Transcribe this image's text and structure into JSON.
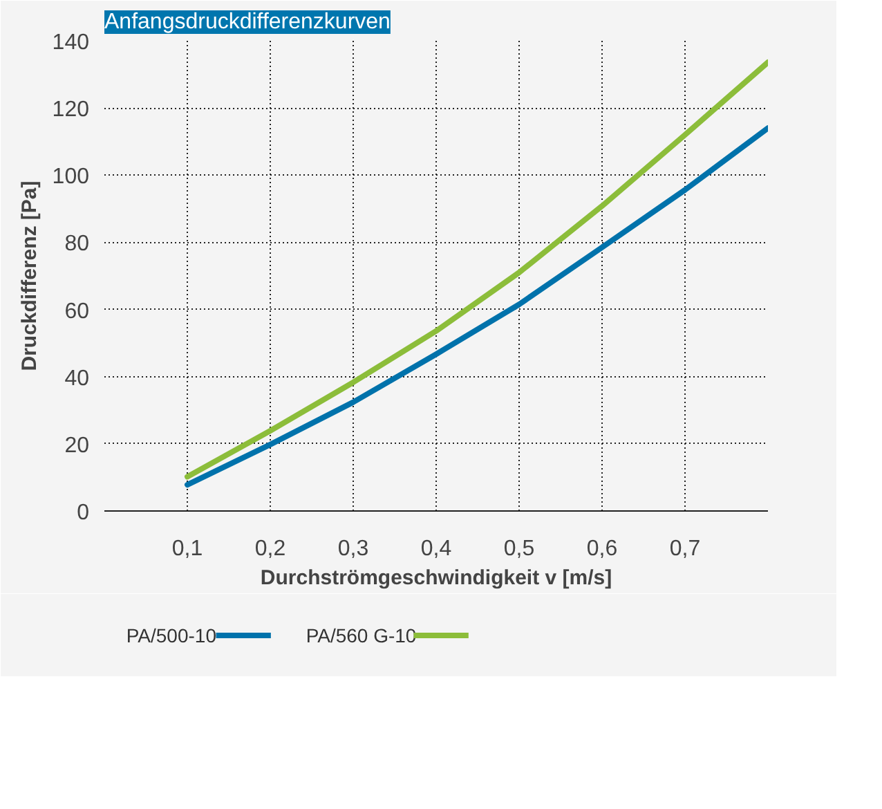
{
  "chart_data": {
    "type": "line",
    "title": "Anfangsdruckdifferenzkurven",
    "xlabel": "Durchströmgeschwindigkeit v [m/s]",
    "ylabel": "Druckdifferenz [Pa]",
    "x": [
      0.1,
      0.2,
      0.3,
      0.4,
      0.5,
      0.6,
      0.7,
      0.8
    ],
    "series": [
      {
        "name": "PA/500-10",
        "color": "#0072ab",
        "values": [
          7.8,
          19.8,
          32.4,
          46.7,
          61.5,
          78.5,
          95.6,
          114
        ]
      },
      {
        "name": "PA/560 G-10",
        "color": "#8cbd3a",
        "values": [
          10.2,
          23.9,
          38.3,
          53.6,
          71,
          90.8,
          112,
          133.6
        ]
      }
    ],
    "xlim": [
      0,
      0.8
    ],
    "ylim": [
      0,
      140
    ],
    "xticks": [
      {
        "value": 0.1,
        "label": "0,1"
      },
      {
        "value": 0.2,
        "label": "0,2"
      },
      {
        "value": 0.3,
        "label": "0,3"
      },
      {
        "value": 0.4,
        "label": "0,4"
      },
      {
        "value": 0.5,
        "label": "0,5"
      },
      {
        "value": 0.6,
        "label": "0,6"
      },
      {
        "value": 0.7,
        "label": "0,7"
      }
    ],
    "yticks": [
      0,
      20,
      40,
      60,
      80,
      100,
      120,
      140
    ],
    "grid": true,
    "legend": "bottom",
    "marker": "none",
    "line_style": "solid"
  }
}
